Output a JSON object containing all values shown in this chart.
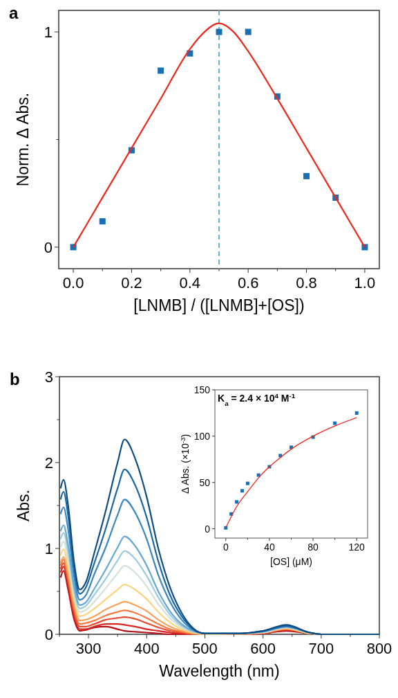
{
  "chart_data": [
    {
      "type": "scatter",
      "title": "a",
      "xlabel": "[LNMB] / ([LNMB]+[OS])",
      "ylabel": "Norm. Δ Abs.",
      "xlim": [
        -0.05,
        1.05
      ],
      "ylim": [
        -0.1,
        1.1
      ],
      "xticks": [
        {
          "value": 0,
          "label": "0.0"
        },
        {
          "value": 0.1,
          "label": null
        },
        {
          "value": 0.2,
          "label": "0.2"
        },
        {
          "value": 0.3,
          "label": null
        },
        {
          "value": 0.4,
          "label": "0.4"
        },
        {
          "value": 0.5,
          "label": null
        },
        {
          "value": 0.6,
          "label": "0.6"
        },
        {
          "value": 0.7,
          "label": null
        },
        {
          "value": 0.8,
          "label": "0.8"
        },
        {
          "value": 0.9,
          "label": null
        },
        {
          "value": 1,
          "label": "1.0"
        }
      ],
      "yticks": [
        0,
        {
          "value": 0.5,
          "label": null
        },
        1
      ],
      "grid": false,
      "marker": "square",
      "ref_lines": [
        {
          "axis": "x",
          "value": 0.5,
          "color": "#5bb8dc",
          "line_style": "dashed"
        }
      ],
      "series": [
        {
          "color": "#1a6fb3",
          "x": [
            0,
            0.1,
            0.2,
            0.3,
            0.4,
            0.5,
            0.6,
            0.7,
            0.8,
            0.9,
            1
          ],
          "values": [
            0,
            0.12,
            0.45,
            0.82,
            0.9,
            1,
            1,
            0.7,
            0.33,
            0.23,
            0
          ]
        },
        {
          "type": "line",
          "color": "#f0261c",
          "marker": "none",
          "line_style": "solid",
          "x": [
            0,
            0.1,
            0.2,
            0.3,
            0.4,
            0.45,
            0.5,
            0.55,
            0.6,
            0.7,
            0.8,
            0.9,
            1
          ],
          "values": [
            0,
            0.23,
            0.46,
            0.69,
            0.92,
            1,
            1.04,
            1,
            0.91,
            0.69,
            0.46,
            0.23,
            0
          ]
        }
      ]
    },
    {
      "type": "line",
      "title": "b",
      "xlabel": "Wavelength (nm)",
      "ylabel": "Abs.",
      "xlim": [
        250,
        800
      ],
      "ylim": [
        0,
        3
      ],
      "xticks": [
        {
          "value": 250,
          "label": null
        },
        300,
        {
          "value": 350,
          "label": null
        },
        400,
        {
          "value": 450,
          "label": null
        },
        500,
        {
          "value": 550,
          "label": null
        },
        600,
        {
          "value": 650,
          "label": null
        },
        700,
        {
          "value": 750,
          "label": null
        },
        800
      ],
      "yticks": [
        0,
        {
          "value": 0.5,
          "label": null
        },
        1,
        {
          "value": 1.5,
          "label": null
        },
        2,
        {
          "value": 2.5,
          "label": null
        },
        3
      ],
      "grid": false,
      "line_style": "solid",
      "x": [
        252,
        257,
        265,
        275,
        285,
        295,
        310,
        330,
        350,
        362,
        380,
        400,
        420,
        440,
        460,
        480,
        500,
        560,
        600,
        640,
        680,
        700,
        800
      ],
      "series": [
        {
          "color": "#b31117",
          "values": [
            0.66,
            0.74,
            0.52,
            0.18,
            0.04,
            0.05,
            0.08,
            0.09,
            0.06,
            0.04,
            0.03,
            0.02,
            0.01,
            0,
            0,
            0,
            0,
            0,
            0.01,
            0.04,
            0.01,
            0,
            0
          ]
        },
        {
          "color": "#d9241f",
          "values": [
            0.72,
            0.79,
            0.57,
            0.22,
            0.06,
            0.06,
            0.09,
            0.12,
            0.12,
            0.11,
            0.09,
            0.06,
            0.04,
            0.02,
            0.01,
            0,
            0,
            0,
            0.01,
            0.05,
            0.01,
            0,
            0
          ]
        },
        {
          "color": "#e84a2e",
          "values": [
            0.76,
            0.83,
            0.62,
            0.26,
            0.09,
            0.09,
            0.12,
            0.17,
            0.19,
            0.2,
            0.18,
            0.13,
            0.08,
            0.04,
            0.02,
            0,
            0,
            0,
            0.01,
            0.06,
            0.01,
            0,
            0
          ]
        },
        {
          "color": "#f47840",
          "values": [
            0.8,
            0.87,
            0.66,
            0.3,
            0.12,
            0.13,
            0.16,
            0.22,
            0.26,
            0.28,
            0.25,
            0.19,
            0.12,
            0.06,
            0.03,
            0.01,
            0,
            0,
            0.02,
            0.06,
            0.01,
            0,
            0
          ]
        },
        {
          "color": "#fba25a",
          "values": [
            0.83,
            0.9,
            0.7,
            0.34,
            0.16,
            0.17,
            0.21,
            0.29,
            0.35,
            0.38,
            0.34,
            0.27,
            0.17,
            0.09,
            0.04,
            0.01,
            0,
            0,
            0.02,
            0.07,
            0.01,
            0,
            0
          ]
        },
        {
          "color": "#fdd37f",
          "values": [
            0.92,
            0.99,
            0.78,
            0.4,
            0.21,
            0.23,
            0.3,
            0.41,
            0.52,
            0.58,
            0.52,
            0.41,
            0.26,
            0.14,
            0.06,
            0.02,
            0,
            0.01,
            0.02,
            0.07,
            0.01,
            0,
            0
          ]
        },
        {
          "color": "#d3e2d6",
          "values": [
            1.01,
            1.08,
            0.87,
            0.46,
            0.26,
            0.28,
            0.38,
            0.54,
            0.71,
            0.8,
            0.72,
            0.56,
            0.35,
            0.19,
            0.08,
            0.03,
            0.01,
            0.01,
            0.02,
            0.08,
            0.02,
            0,
            0
          ]
        },
        {
          "color": "#9ccbe1",
          "values": [
            1.11,
            1.18,
            0.96,
            0.52,
            0.3,
            0.33,
            0.46,
            0.65,
            0.86,
            0.97,
            0.88,
            0.68,
            0.43,
            0.23,
            0.1,
            0.03,
            0.01,
            0.01,
            0.03,
            0.08,
            0.02,
            0,
            0
          ]
        },
        {
          "color": "#64a7d2",
          "values": [
            1.2,
            1.27,
            1.04,
            0.57,
            0.34,
            0.37,
            0.53,
            0.76,
            1.01,
            1.14,
            1.03,
            0.8,
            0.5,
            0.27,
            0.12,
            0.04,
            0.01,
            0.01,
            0.03,
            0.09,
            0.02,
            0,
            0
          ]
        },
        {
          "color": "#3a86bf",
          "values": [
            1.4,
            1.48,
            1.22,
            0.68,
            0.4,
            0.45,
            0.7,
            1.02,
            1.39,
            1.57,
            1.42,
            1.11,
            0.69,
            0.38,
            0.17,
            0.05,
            0.01,
            0.01,
            0.03,
            0.09,
            0.02,
            0,
            0
          ]
        },
        {
          "color": "#1966a5",
          "values": [
            1.57,
            1.66,
            1.38,
            0.78,
            0.47,
            0.54,
            0.83,
            1.24,
            1.7,
            1.92,
            1.74,
            1.36,
            0.85,
            0.46,
            0.21,
            0.06,
            0.01,
            0.01,
            0.04,
            0.1,
            0.02,
            0,
            0
          ]
        },
        {
          "color": "#0e4b80",
          "values": [
            1.7,
            1.8,
            1.5,
            0.85,
            0.52,
            0.6,
            0.95,
            1.45,
            2,
            2.27,
            2.05,
            1.6,
            1,
            0.55,
            0.25,
            0.07,
            0.01,
            0.01,
            0.04,
            0.11,
            0.02,
            0,
            0
          ]
        }
      ]
    },
    {
      "type": "scatter",
      "xlabel": "[OS] (μM)",
      "ylabel": "Δ Abs. (×10$^{-3}$)",
      "annotations": [
        "K$_{a}$ = 2.4 × 10$^{4}$ M$^{-1}$"
      ],
      "xlim": [
        -10,
        130
      ],
      "ylim": [
        -10,
        150
      ],
      "xticks": [
        0,
        {
          "value": 20,
          "label": null
        },
        40,
        {
          "value": 60,
          "label": null
        },
        80,
        {
          "value": 100,
          "label": null
        },
        120
      ],
      "yticks": [
        0,
        50,
        100,
        150
      ],
      "grid": false,
      "marker": "square",
      "series": [
        {
          "color": "#1a6fb3",
          "x": [
            0,
            5,
            10,
            15,
            20,
            30,
            40,
            50,
            60,
            80,
            100,
            120
          ],
          "values": [
            1,
            16,
            29,
            41,
            49,
            58,
            67,
            79,
            88,
            99,
            114,
            125
          ]
        },
        {
          "type": "line",
          "color": "#f0261c",
          "marker": "none",
          "line_style": "solid",
          "x": [
            0,
            10,
            20,
            30,
            40,
            50,
            60,
            80,
            100,
            120
          ],
          "values": [
            1,
            24,
            40,
            55,
            67,
            77,
            86,
            100,
            111,
            120
          ]
        }
      ]
    }
  ]
}
